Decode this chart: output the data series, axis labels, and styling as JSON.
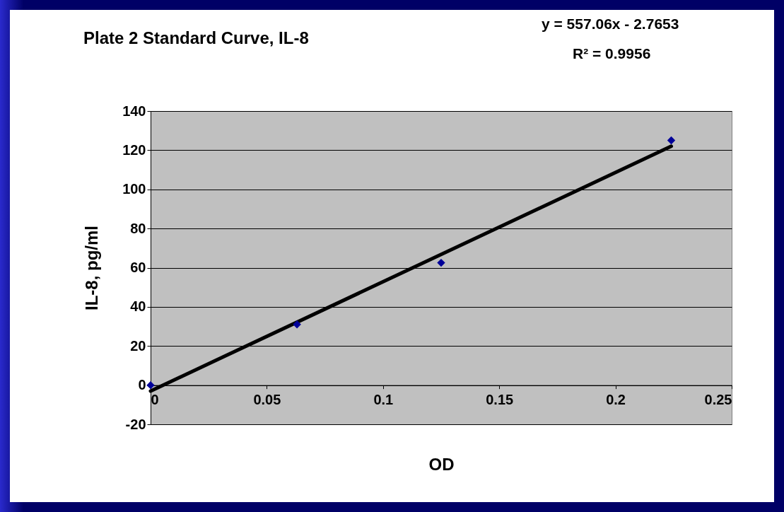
{
  "chart_data": {
    "type": "scatter",
    "title": "Plate 2 Standard Curve, IL-8",
    "xlabel": "OD",
    "ylabel": "IL-8, pg/ml",
    "annotations": [
      "y = 557.06x - 2.7653",
      "R² = 0.9956"
    ],
    "xlim": [
      0,
      0.25
    ],
    "xticks": [
      0,
      0.05,
      0.1,
      0.15,
      0.2,
      0.25
    ],
    "ylim": [
      -20,
      140
    ],
    "yticks": [
      -20,
      0,
      20,
      40,
      60,
      80,
      100,
      120,
      140
    ],
    "grid": "y",
    "marker": "diamond",
    "series": [
      {
        "color": "#000099",
        "x": [
          0,
          0.063,
          0.125,
          0.224
        ],
        "values": [
          0,
          31,
          62.5,
          125
        ]
      },
      {
        "type": "line",
        "color": "#000000",
        "marker": "none",
        "x": [
          0,
          0.224
        ],
        "values": [
          -3,
          122
        ]
      }
    ]
  }
}
